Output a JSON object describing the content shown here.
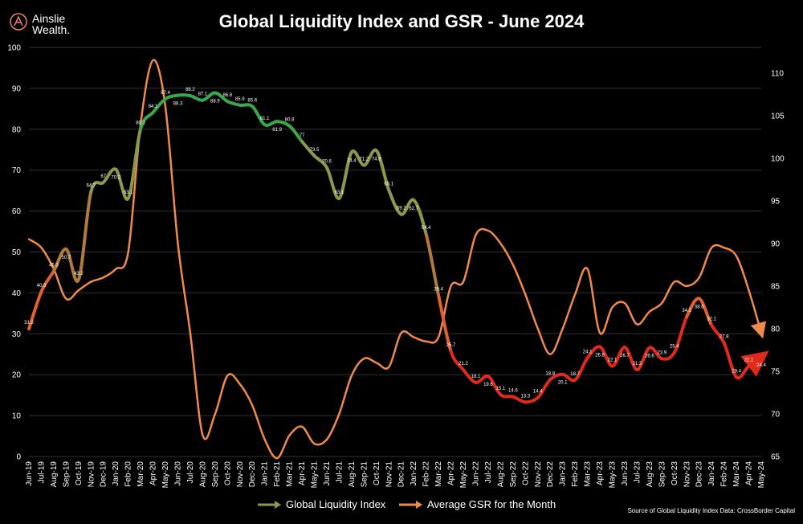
{
  "logo": {
    "line1": "Ainslie",
    "line2": "Wealth.",
    "accent": "#e8826a"
  },
  "chart_data": {
    "type": "line",
    "title": "Global Liquidity Index and GSR - June 2024",
    "source": "Source of Global Liquidity Index Data: CrossBorder Capital",
    "categories": [
      "Jun-19",
      "Jul-19",
      "Aug-19",
      "Sep-19",
      "Oct-19",
      "Nov-19",
      "Dec-19",
      "Jan-20",
      "Feb-20",
      "Mar-20",
      "Apr-20",
      "May-20",
      "Jun-20",
      "Jul-20",
      "Aug-20",
      "Sep-20",
      "Oct-20",
      "Nov-20",
      "Dec-20",
      "Jan-21",
      "Feb-21",
      "Mar-21",
      "Apr-21",
      "May-21",
      "Jun-21",
      "Jul-21",
      "Aug-21",
      "Sep-21",
      "Oct-21",
      "Nov-21",
      "Dec-21",
      "Jan-22",
      "Feb-22",
      "Mar-22",
      "Apr-22",
      "May-22",
      "Jun-22",
      "Jul-22",
      "Aug-22",
      "Sep-22",
      "Oct-22",
      "Nov-22",
      "Dec-22",
      "Jan-23",
      "Feb-23",
      "Mar-23",
      "Apr-23",
      "May-23",
      "Jun-23",
      "Jul-23",
      "Aug-23",
      "Sep-23",
      "Oct-23",
      "Nov-23",
      "Dec-23",
      "Jan-24",
      "Feb-24",
      "Mar-24",
      "Apr-24",
      "May-24"
    ],
    "left_axis": {
      "min": 0,
      "max": 100,
      "ticks": [
        "0",
        "10",
        "20",
        "30",
        "40",
        "50",
        "60",
        "70",
        "80",
        "90",
        "100"
      ]
    },
    "right_axis": {
      "min": 65,
      "max": 113,
      "ticks": [
        "65",
        "70",
        "75",
        "80",
        "85",
        "90",
        "95",
        "100",
        "105",
        "110"
      ]
    },
    "series": [
      {
        "name": "Global Liquidity Index",
        "axis": "left",
        "values": [
          31.2,
          40.3,
          45.3,
          50.7,
          43.2,
          64.7,
          67,
          70.2,
          63.1,
          80.1,
          84.1,
          87.4,
          88.3,
          88.2,
          87.1,
          88.9,
          86.8,
          85.9,
          85.6,
          81.1,
          81.9,
          80.8,
          77,
          73.5,
          70.6,
          63.1,
          74.4,
          71.2,
          74.8,
          65.1,
          59.2,
          62.7,
          54.4,
          39.4,
          25.7,
          21.2,
          18.1,
          19.6,
          15.1,
          14.6,
          13.3,
          14.4,
          18.8,
          20.1,
          18.7,
          24.1,
          26.8,
          22.1,
          26.7,
          21.2,
          26.6,
          23.9,
          25.4,
          34.2,
          38.6,
          32.1,
          27.8,
          19.4,
          22.1,
          24.4
        ],
        "labels": [
          "31.2",
          "40.3",
          "45.3",
          "50.7",
          "43.2",
          "64.7",
          "67",
          "70.2",
          "63.1",
          "80.1",
          "84.1",
          "87.4",
          "88.3",
          "88.2",
          "87.1",
          "88.9",
          "86.8",
          "85.9",
          "85.6",
          "81.1",
          "81.9",
          "80.8",
          "77",
          "73.5",
          "70.6",
          "63.1",
          "74.4",
          "71.2",
          "74.8",
          "65.1",
          "59.2",
          "62.7",
          "54.4",
          "39.4",
          "25.7",
          "21.2",
          "18.1",
          "19.6",
          "15.1",
          "14.6",
          "13.3",
          "14.4",
          "18.8",
          "20.1",
          "18.7",
          "24.1",
          "26.8",
          "22.1",
          "26.7",
          "21.2",
          "26.6",
          "23.9",
          "25.4",
          "34.2",
          "38.6",
          "32.1",
          "27.8",
          "19.4",
          "22.1",
          "24.4"
        ],
        "color_high": "#3aa84a",
        "color_mid": "#8a9a4a",
        "color_low": "#e02a1a"
      },
      {
        "name": "Average GSR for the Month",
        "axis": "right",
        "values": [
          90.5,
          89.5,
          87,
          83.5,
          84.5,
          85.5,
          86,
          87,
          89,
          104,
          111.5,
          106,
          90,
          79.5,
          67.5,
          70,
          74.5,
          73.5,
          71,
          67,
          64.8,
          67.5,
          68.5,
          66.5,
          67,
          70,
          74.5,
          76.5,
          76,
          75.5,
          79.5,
          79,
          78.5,
          79,
          85,
          85.5,
          91,
          91.5,
          90,
          87.5,
          84,
          80,
          77,
          80,
          84,
          87,
          79.5,
          82.5,
          83,
          80.5,
          82,
          83,
          85.5,
          85,
          86,
          89.5,
          89.5,
          88.5,
          84.5,
          79.5
        ],
        "color": "#f08a4a"
      }
    ],
    "legend": [
      "Global Liquidity Index",
      "Average GSR for the Month"
    ],
    "grid": true
  }
}
